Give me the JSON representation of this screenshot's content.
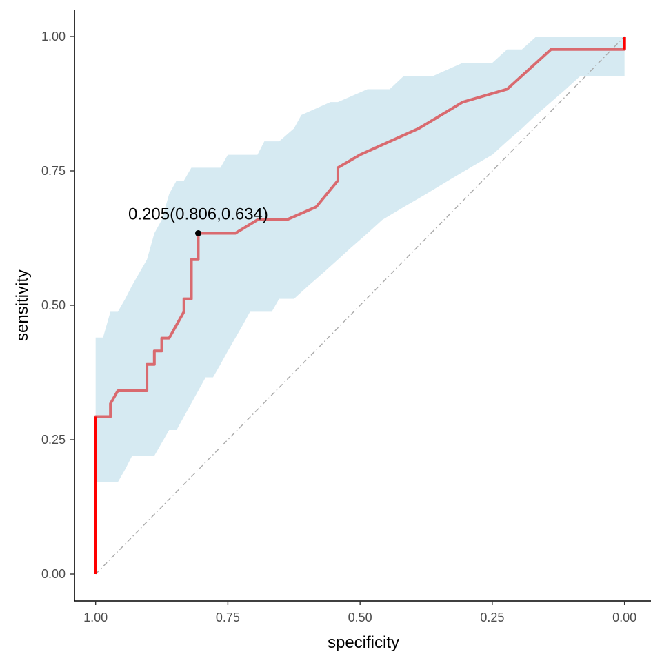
{
  "chart_data": {
    "type": "line",
    "title": "",
    "xlabel": "specificity",
    "ylabel": "sensitivity",
    "x_reversed": true,
    "xlim": [
      1.04,
      -0.05
    ],
    "ylim": [
      -0.05,
      1.05
    ],
    "xticks": [
      1.0,
      0.75,
      0.5,
      0.25,
      0.0
    ],
    "xtick_labels": [
      "1.00",
      "0.75",
      "0.50",
      "0.25",
      "0.00"
    ],
    "yticks": [
      0.0,
      0.25,
      0.5,
      0.75,
      1.0
    ],
    "ytick_labels": [
      "0.00",
      "0.25",
      "0.50",
      "0.75",
      "1.00"
    ],
    "grid": false,
    "legend": "none",
    "colors": {
      "roc_line": "#d96a6f",
      "roc_ends": "#ff0000",
      "confidence_band": "#d6eaf2",
      "diagonal": "#aaaaaa",
      "point": "#000000"
    },
    "series": [
      {
        "kind": "roc_curve",
        "points": [
          [
            1.0,
            0.0
          ],
          [
            1.0,
            0.293
          ],
          [
            0.972,
            0.293
          ],
          [
            0.972,
            0.317
          ],
          [
            0.958,
            0.341
          ],
          [
            0.903,
            0.341
          ],
          [
            0.903,
            0.39
          ],
          [
            0.889,
            0.39
          ],
          [
            0.889,
            0.415
          ],
          [
            0.875,
            0.415
          ],
          [
            0.875,
            0.439
          ],
          [
            0.861,
            0.439
          ],
          [
            0.833,
            0.488
          ],
          [
            0.833,
            0.512
          ],
          [
            0.819,
            0.512
          ],
          [
            0.819,
            0.585
          ],
          [
            0.806,
            0.585
          ],
          [
            0.806,
            0.634
          ],
          [
            0.736,
            0.634
          ],
          [
            0.694,
            0.659
          ],
          [
            0.639,
            0.659
          ],
          [
            0.583,
            0.683
          ],
          [
            0.542,
            0.732
          ],
          [
            0.542,
            0.756
          ],
          [
            0.5,
            0.78
          ],
          [
            0.389,
            0.829
          ],
          [
            0.306,
            0.878
          ],
          [
            0.222,
            0.902
          ],
          [
            0.139,
            0.976
          ],
          [
            0.0,
            0.976
          ],
          [
            0.0,
            1.0
          ]
        ]
      },
      {
        "kind": "sensitivity_ci_upper",
        "points": [
          [
            1.0,
            0.44
          ],
          [
            0.986,
            0.44
          ],
          [
            0.972,
            0.488
          ],
          [
            0.958,
            0.488
          ],
          [
            0.944,
            0.512
          ],
          [
            0.931,
            0.537
          ],
          [
            0.917,
            0.561
          ],
          [
            0.903,
            0.585
          ],
          [
            0.889,
            0.634
          ],
          [
            0.875,
            0.659
          ],
          [
            0.861,
            0.707
          ],
          [
            0.847,
            0.732
          ],
          [
            0.833,
            0.732
          ],
          [
            0.819,
            0.756
          ],
          [
            0.764,
            0.756
          ],
          [
            0.75,
            0.78
          ],
          [
            0.694,
            0.78
          ],
          [
            0.681,
            0.805
          ],
          [
            0.653,
            0.805
          ],
          [
            0.625,
            0.829
          ],
          [
            0.611,
            0.854
          ],
          [
            0.556,
            0.878
          ],
          [
            0.542,
            0.878
          ],
          [
            0.486,
            0.902
          ],
          [
            0.444,
            0.902
          ],
          [
            0.417,
            0.927
          ],
          [
            0.361,
            0.927
          ],
          [
            0.306,
            0.951
          ],
          [
            0.25,
            0.951
          ],
          [
            0.222,
            0.976
          ],
          [
            0.194,
            0.976
          ],
          [
            0.167,
            1.0
          ],
          [
            0.0,
            1.0
          ]
        ]
      },
      {
        "kind": "sensitivity_ci_lower",
        "points": [
          [
            1.0,
            0.171
          ],
          [
            0.958,
            0.171
          ],
          [
            0.944,
            0.195
          ],
          [
            0.931,
            0.22
          ],
          [
            0.889,
            0.22
          ],
          [
            0.875,
            0.244
          ],
          [
            0.861,
            0.268
          ],
          [
            0.847,
            0.268
          ],
          [
            0.833,
            0.293
          ],
          [
            0.806,
            0.341
          ],
          [
            0.792,
            0.366
          ],
          [
            0.778,
            0.366
          ],
          [
            0.764,
            0.39
          ],
          [
            0.75,
            0.415
          ],
          [
            0.736,
            0.439
          ],
          [
            0.722,
            0.463
          ],
          [
            0.708,
            0.488
          ],
          [
            0.667,
            0.488
          ],
          [
            0.653,
            0.512
          ],
          [
            0.625,
            0.512
          ],
          [
            0.597,
            0.537
          ],
          [
            0.569,
            0.561
          ],
          [
            0.542,
            0.585
          ],
          [
            0.514,
            0.61
          ],
          [
            0.486,
            0.634
          ],
          [
            0.458,
            0.659
          ],
          [
            0.417,
            0.683
          ],
          [
            0.375,
            0.707
          ],
          [
            0.333,
            0.732
          ],
          [
            0.292,
            0.756
          ],
          [
            0.25,
            0.78
          ],
          [
            0.222,
            0.805
          ],
          [
            0.194,
            0.829
          ],
          [
            0.167,
            0.854
          ],
          [
            0.139,
            0.878
          ],
          [
            0.111,
            0.902
          ],
          [
            0.083,
            0.927
          ],
          [
            0.0,
            0.927
          ]
        ]
      },
      {
        "kind": "reference_diagonal",
        "points": [
          [
            1.0,
            0.0
          ],
          [
            0.0,
            1.0
          ]
        ]
      }
    ],
    "annotations": [
      {
        "label": "0.205(0.806,0.634)",
        "x": 0.806,
        "y": 0.634
      }
    ]
  }
}
